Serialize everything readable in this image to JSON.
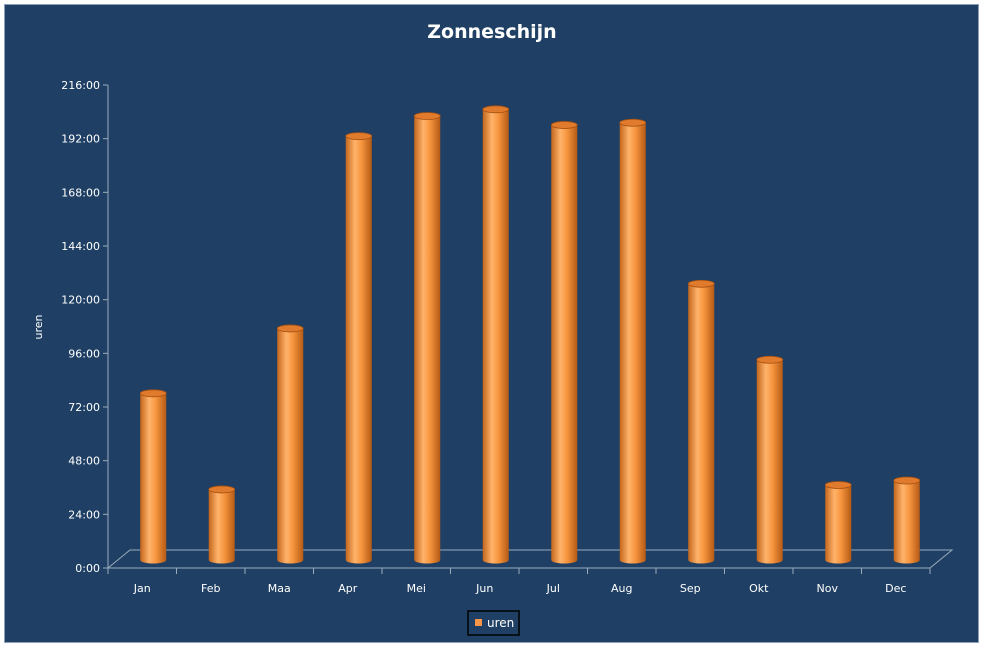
{
  "chart_data": {
    "type": "bar",
    "title": "Zonneschijn",
    "xlabel": "",
    "ylabel": "uren",
    "categories": [
      "Jan",
      "Feb",
      "Maa",
      "Apr",
      "Mei",
      "Jun",
      "Jul",
      "Aug",
      "Sep",
      "Okt",
      "Nov",
      "Dec"
    ],
    "series": [
      {
        "name": "uren",
        "values": [
          75,
          32,
          104,
          190,
          199,
          202,
          195,
          196,
          124,
          90,
          34,
          36
        ],
        "color": "#f79646"
      }
    ],
    "ylim": [
      0,
      216
    ],
    "y_ticks": [
      "0:00",
      "24:00",
      "48:00",
      "72:00",
      "96:00",
      "120:00",
      "144:00",
      "168:00",
      "192:00",
      "216:00"
    ],
    "grid": false,
    "legend_position": "bottom",
    "background_color": "#1f4064",
    "bar_shape": "3d-cylinder"
  }
}
